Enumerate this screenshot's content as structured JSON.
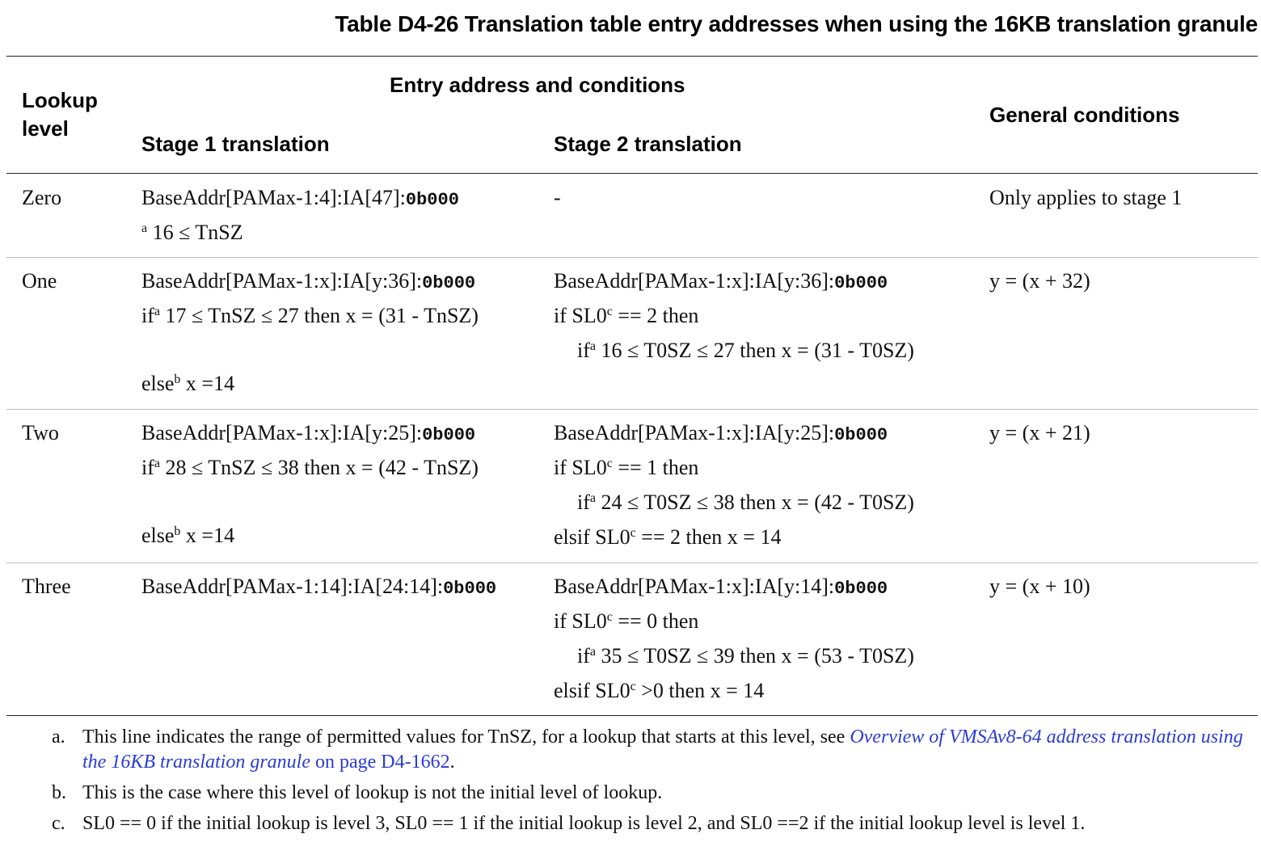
{
  "title": "Table D4-26 Translation table entry addresses when using the 16KB translation granule",
  "headers": {
    "lookup_level": [
      "Lookup",
      "level"
    ],
    "group": "Entry address and conditions",
    "stage1": "Stage 1 translation",
    "stage2": "Stage 2 translation",
    "general": "General conditions"
  },
  "rows": [
    {
      "level": "Zero",
      "s1": {
        "addr": "BaseAddr[PAMax-1:4]:IA[47]:",
        "const": "0b000",
        "range": "16 ≤ TnSZ"
      },
      "s2": "-",
      "general": "Only applies to stage 1"
    },
    {
      "level": "One",
      "s1": {
        "addr": "BaseAddr[PAMax-1:x]:IA[y:36]:",
        "const": "0b000",
        "cond": "17 ≤ TnSZ ≤ 27 then x = (31 - TnSZ)",
        "else": "x =14"
      },
      "s2": {
        "addr": "BaseAddr[PAMax-1:x]:IA[y:36]:",
        "const": "0b000",
        "if": "== 2 then",
        "inner": "16 ≤ T0SZ ≤ 27 then x = (31 - T0SZ)"
      },
      "general": "y = (x + 32)"
    },
    {
      "level": "Two",
      "s1": {
        "addr": "BaseAddr[PAMax-1:x]:IA[y:25]:",
        "const": "0b000",
        "cond": "28 ≤ TnSZ ≤ 38 then x = (42 - TnSZ)",
        "else": "x =14"
      },
      "s2": {
        "addr": "BaseAddr[PAMax-1:x]:IA[y:25]:",
        "const": "0b000",
        "if": "== 1 then",
        "inner": "24 ≤ T0SZ ≤ 38 then x = (42 - T0SZ)",
        "elsif": "== 2 then x = 14"
      },
      "general": "y = (x + 21)"
    },
    {
      "level": "Three",
      "s1": {
        "addr": "BaseAddr[PAMax-1:14]:IA[24:14]:",
        "const": "0b000"
      },
      "s2": {
        "addr": "BaseAddr[PAMax-1:x]:IA[y:14]:",
        "const": "0b000",
        "if": "== 0 then",
        "inner": "35 ≤ T0SZ ≤ 39 then x = (53 - T0SZ)",
        "elsif": ">0 then x = 14"
      },
      "general": "y = (x + 10)"
    }
  ],
  "keywords": {
    "if": "if",
    "else": "else",
    "elsif": "elsif",
    "sl0": "SL0"
  },
  "markers": {
    "a": "a",
    "b": "b",
    "c": "c"
  },
  "notes": [
    {
      "label": "a.",
      "text": "This line indicates the range of permitted values for TnSZ, for a lookup that starts at this level, see ",
      "link": "Overview of VMSAv8-64 address translation using the 16KB translation granule",
      "page": "on page D4-1662",
      "end": "."
    },
    {
      "label": "b.",
      "text": "This is the case where this level of lookup is not the initial level of lookup."
    },
    {
      "label": "c.",
      "text": "SL0 == 0 if the initial lookup is level 3, SL0 == 1 if the initial lookup is level 2, and SL0 ==2 if the initial lookup level is level 1."
    }
  ]
}
